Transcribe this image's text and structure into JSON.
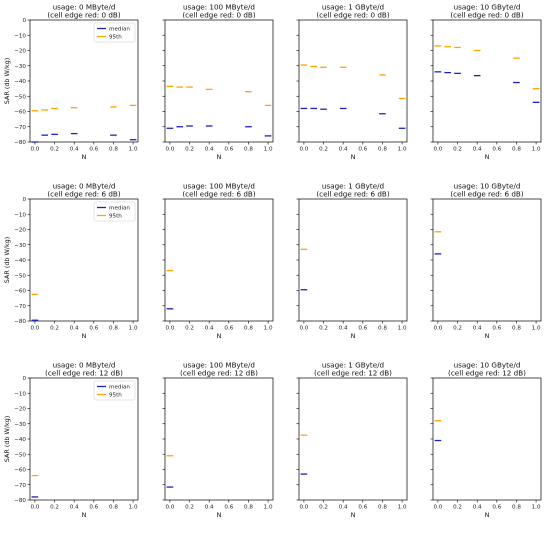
{
  "colors": {
    "median": "#1f1fbf",
    "p95": "#ffa500"
  },
  "chart_data": {
    "type": "scatter",
    "rows": 3,
    "cols": 4,
    "x_ticks": [
      0.0,
      0.2,
      0.4,
      0.6,
      0.8,
      1.0
    ],
    "x_tick_labels": [
      "0.0",
      "0.2",
      "0.4",
      "0.6",
      "0.8",
      "1.0"
    ],
    "y_ticks": [
      0,
      -10,
      -20,
      -30,
      -40,
      -50,
      -60,
      -70,
      -80
    ],
    "y_tick_labels": [
      "0",
      "−10",
      "−20",
      "−30",
      "−40",
      "−50",
      "−60",
      "−70",
      "−80"
    ],
    "xlim": [
      -0.05,
      1.05
    ],
    "ylim": [
      -80,
      0
    ],
    "xlabel": "N",
    "ylabel": "SAR (db W/kg)",
    "legend": {
      "position": "top-right",
      "entries": [
        "median",
        "95th"
      ]
    },
    "panels": [
      {
        "title1": "usage: 0 MByte/d",
        "title2": "(cell edge red: 0 dB)",
        "series": [
          {
            "name": "median",
            "x": [
              0.0,
              0.1,
              0.2,
              0.4,
              0.8,
              1.0
            ],
            "y": [
              -80,
              -75.5,
              -75,
              -74.5,
              -75.5,
              -78.5
            ]
          },
          {
            "name": "95th",
            "x": [
              0.0,
              0.1,
              0.2,
              0.4,
              0.8,
              1.0
            ],
            "y": [
              -59.5,
              -59,
              -58,
              -57.5,
              -57,
              -56
            ]
          }
        ]
      },
      {
        "title1": "usage: 100 MByte/d",
        "title2": "(cell edge red: 0 dB)",
        "series": [
          {
            "name": "median",
            "x": [
              0.0,
              0.1,
              0.2,
              0.4,
              0.8,
              1.0
            ],
            "y": [
              -71,
              -70,
              -69.5,
              -69.5,
              -70,
              -76
            ]
          },
          {
            "name": "95th",
            "x": [
              0.0,
              0.1,
              0.2,
              0.4,
              0.8,
              1.0
            ],
            "y": [
              -43.5,
              -44,
              -44,
              -45.5,
              -47,
              -56
            ]
          }
        ]
      },
      {
        "title1": "usage: 1 GByte/d",
        "title2": "(cell edge red: 0 dB)",
        "series": [
          {
            "name": "median",
            "x": [
              0.0,
              0.1,
              0.2,
              0.4,
              0.8,
              1.0
            ],
            "y": [
              -58,
              -58,
              -58.5,
              -58,
              -61.5,
              -71
            ]
          },
          {
            "name": "95th",
            "x": [
              0.0,
              0.1,
              0.2,
              0.4,
              0.8,
              1.0
            ],
            "y": [
              -29.5,
              -30.5,
              -31,
              -31,
              -36,
              -51.5
            ]
          }
        ]
      },
      {
        "title1": "usage: 10 GByte/d",
        "title2": "(cell edge red: 0 dB)",
        "series": [
          {
            "name": "median",
            "x": [
              0.0,
              0.1,
              0.2,
              0.4,
              0.8,
              1.0
            ],
            "y": [
              -34,
              -34.5,
              -35,
              -36.5,
              -41,
              -54
            ]
          },
          {
            "name": "95th",
            "x": [
              0.0,
              0.1,
              0.2,
              0.4,
              0.8,
              1.0
            ],
            "y": [
              -17,
              -17.5,
              -18,
              -20,
              -25,
              -45
            ]
          }
        ]
      },
      {
        "title1": "usage: 0 MByte/d",
        "title2": "(cell edge red: 6 dB)",
        "series": [
          {
            "name": "median",
            "x": [
              0.0
            ],
            "y": [
              -79.5
            ]
          },
          {
            "name": "95th",
            "x": [
              0.0
            ],
            "y": [
              -62.5
            ]
          }
        ]
      },
      {
        "title1": "usage: 100 MByte/d",
        "title2": "(cell edge red: 6 dB)",
        "series": [
          {
            "name": "median",
            "x": [
              0.0
            ],
            "y": [
              -72
            ]
          },
          {
            "name": "95th",
            "x": [
              0.0
            ],
            "y": [
              -47
            ]
          }
        ]
      },
      {
        "title1": "usage: 1 GByte/d",
        "title2": "(cell edge red: 6 dB)",
        "series": [
          {
            "name": "median",
            "x": [
              0.0
            ],
            "y": [
              -59.5
            ]
          },
          {
            "name": "95th",
            "x": [
              0.0
            ],
            "y": [
              -33
            ]
          }
        ]
      },
      {
        "title1": "usage: 10 GByte/d",
        "title2": "(cell edge red: 6 dB)",
        "series": [
          {
            "name": "median",
            "x": [
              0.0
            ],
            "y": [
              -36
            ]
          },
          {
            "name": "95th",
            "x": [
              0.0
            ],
            "y": [
              -21.5
            ]
          }
        ]
      },
      {
        "title1": "usage: 0 MByte/d",
        "title2": "(cell edge red: 12 dB)",
        "series": [
          {
            "name": "median",
            "x": [
              0.0
            ],
            "y": [
              -78
            ]
          },
          {
            "name": "95th",
            "x": [
              0.0
            ],
            "y": [
              -64
            ]
          }
        ]
      },
      {
        "title1": "usage: 100 MByte/d",
        "title2": "(cell edge red: 12 dB)",
        "series": [
          {
            "name": "median",
            "x": [
              0.0
            ],
            "y": [
              -71.5
            ]
          },
          {
            "name": "95th",
            "x": [
              0.0
            ],
            "y": [
              -51
            ]
          }
        ]
      },
      {
        "title1": "usage: 1 GByte/d",
        "title2": "(cell edge red: 12 dB)",
        "series": [
          {
            "name": "median",
            "x": [
              0.0
            ],
            "y": [
              -63
            ]
          },
          {
            "name": "95th",
            "x": [
              0.0
            ],
            "y": [
              -37.5
            ]
          }
        ]
      },
      {
        "title1": "usage: 10 GByte/d",
        "title2": "(cell edge red: 12 dB)",
        "series": [
          {
            "name": "median",
            "x": [
              0.0
            ],
            "y": [
              -41
            ]
          },
          {
            "name": "95th",
            "x": [
              0.0
            ],
            "y": [
              -28
            ]
          }
        ]
      }
    ]
  }
}
